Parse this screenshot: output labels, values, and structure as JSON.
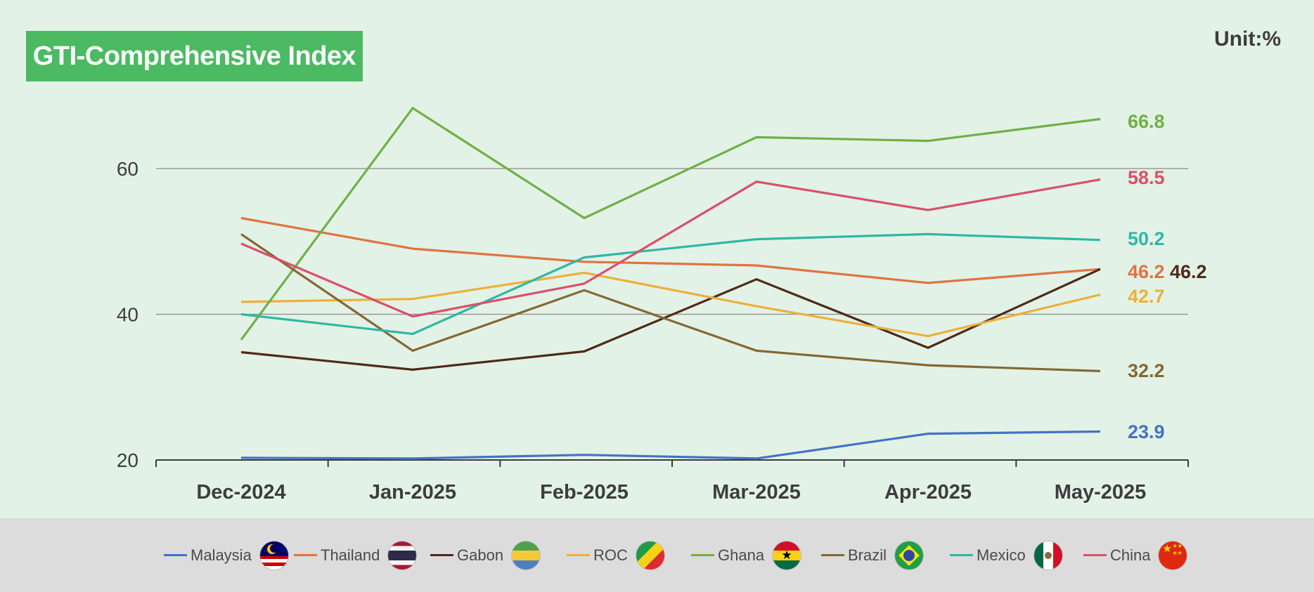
{
  "header": {
    "title": "GTI-Comprehensive Index",
    "unit": "Unit:%"
  },
  "chart_data": {
    "type": "line",
    "title": "GTI-Comprehensive Index",
    "unit": "Unit:%",
    "categories": [
      "Dec-2024",
      "Jan-2025",
      "Feb-2025",
      "Mar-2025",
      "Apr-2025",
      "May-2025"
    ],
    "ylim": [
      20,
      70
    ],
    "yticks": [
      20,
      40,
      60
    ],
    "grid": "horizontal",
    "legend": "bottom",
    "series": [
      {
        "name": "Malaysia",
        "color": "#4472c4",
        "values": [
          20.3,
          20.2,
          20.7,
          20.2,
          23.6,
          23.9
        ],
        "end_label": "23.9",
        "flag_icon": "malaysia-flag-icon"
      },
      {
        "name": "Thailand",
        "color": "#e07440",
        "values": [
          53.2,
          49.0,
          47.2,
          46.7,
          44.3,
          46.2
        ],
        "end_label": "46.2",
        "flag_icon": "thailand-flag-icon"
      },
      {
        "name": "Gabon",
        "color": "#4e2a19",
        "values": [
          34.8,
          32.4,
          34.9,
          44.8,
          35.4,
          46.2
        ],
        "end_label": "46.2",
        "flag_icon": "gabon-flag-icon"
      },
      {
        "name": "ROC",
        "color": "#ecb03c",
        "values": [
          41.7,
          42.1,
          45.7,
          41.1,
          37.0,
          42.7
        ],
        "end_label": "42.7",
        "flag_icon": "roc-flag-icon"
      },
      {
        "name": "Ghana",
        "color": "#70b046",
        "values": [
          36.5,
          68.3,
          53.2,
          64.3,
          63.8,
          66.8
        ],
        "end_label": "66.8",
        "flag_icon": "ghana-flag-icon"
      },
      {
        "name": "Brazil",
        "color": "#846833",
        "values": [
          51.0,
          35.0,
          43.3,
          35.0,
          33.0,
          32.2
        ],
        "end_label": "32.2",
        "flag_icon": "brazil-flag-icon"
      },
      {
        "name": "Mexico",
        "color": "#2fb7a5",
        "values": [
          40.0,
          37.3,
          47.8,
          50.3,
          51.0,
          50.2
        ],
        "end_label": "50.2",
        "flag_icon": "mexico-flag-icon"
      },
      {
        "name": "China",
        "color": "#d9506a",
        "values": [
          49.7,
          39.7,
          44.2,
          58.2,
          54.3,
          58.5
        ],
        "end_label": "58.5",
        "flag_icon": "china-flag-icon"
      }
    ]
  }
}
